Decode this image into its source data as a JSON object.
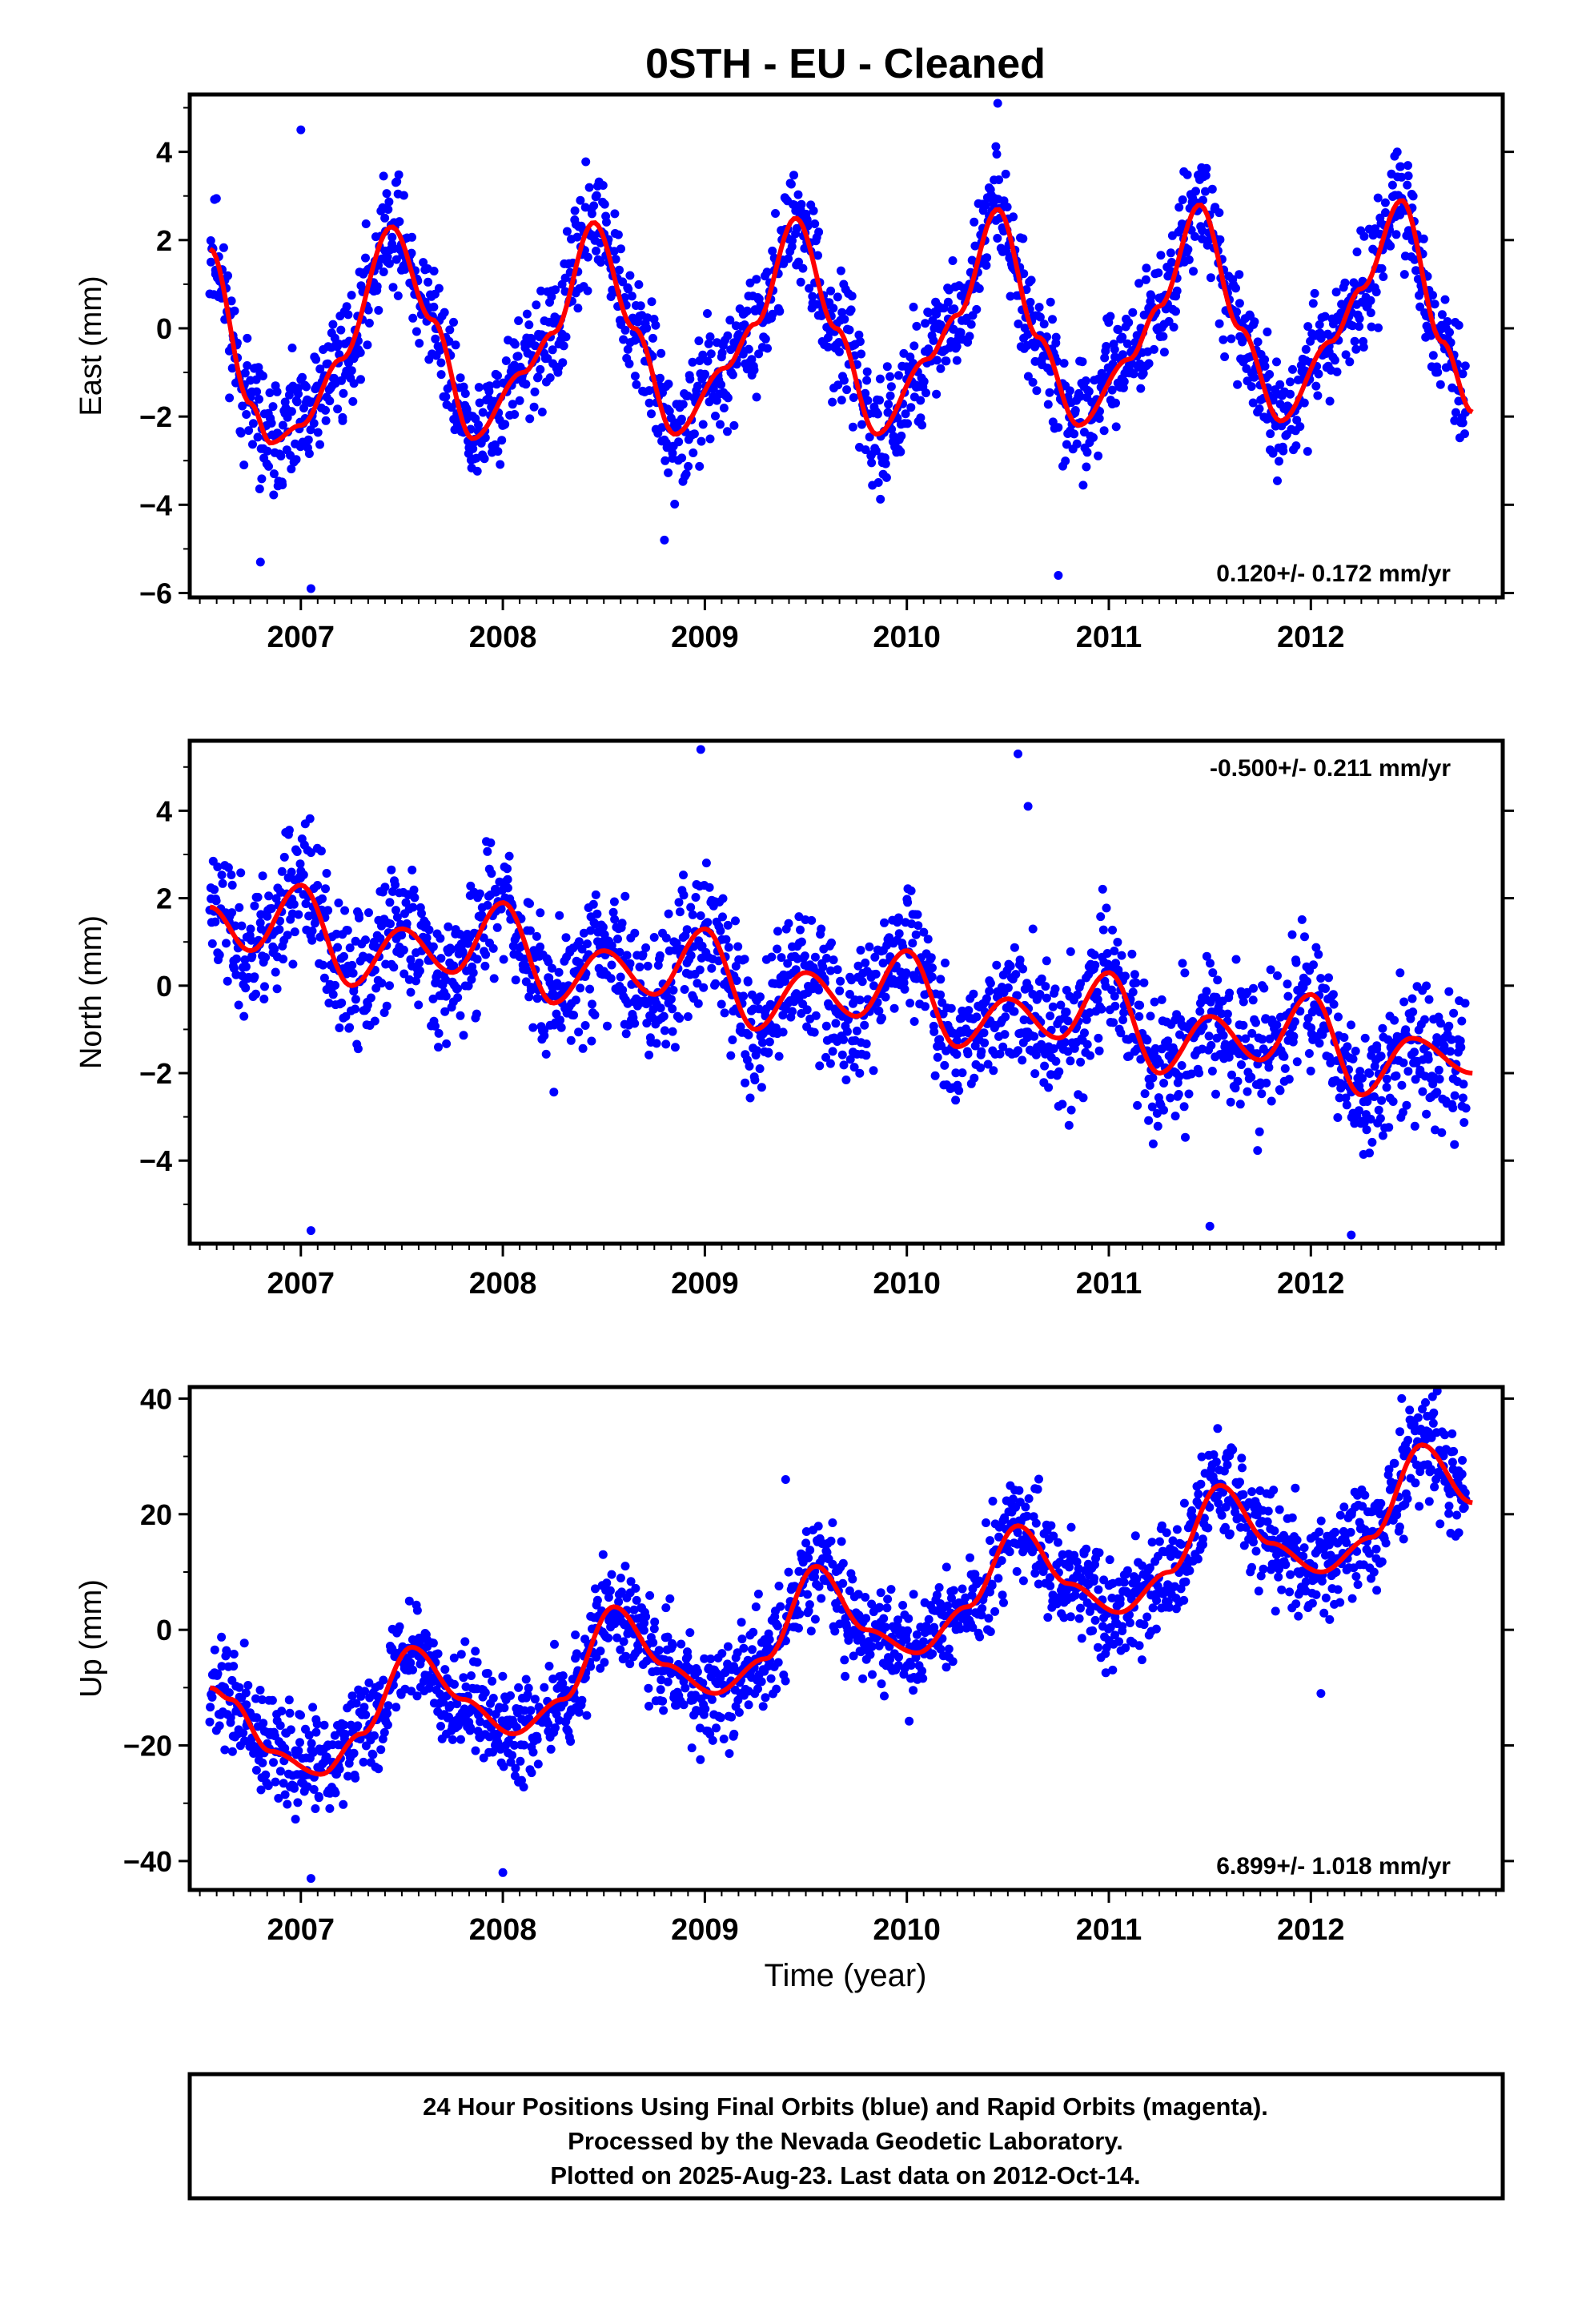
{
  "title": "0STH  - EU - Cleaned",
  "xlabel": "Time (year)",
  "footer": {
    "line1": "24 Hour Positions Using Final Orbits (blue) and Rapid Orbits (magenta).",
    "line2": "Processed by the Nevada Geodetic Laboratory.",
    "line3": "Plotted on 2025-Aug-23. Last data on 2012-Oct-14."
  },
  "colors": {
    "points": "#0000ff",
    "fit": "#ff0000",
    "frame": "#000000"
  },
  "chart_data": [
    {
      "type": "scatter",
      "ylabel": "East (mm)",
      "rate": "0.120+/- 0.172 mm/yr",
      "rate_position": "bottom-right",
      "xlim": [
        2006.45,
        2012.95
      ],
      "ylim": [
        -6.1,
        5.3
      ],
      "yticks": [
        -6,
        -4,
        -2,
        0,
        2,
        4
      ],
      "xticks": [
        2007,
        2008,
        2009,
        2010,
        2011,
        2012
      ],
      "xtick_labels": [
        "2007",
        "2008",
        "2009",
        "2010",
        "2011",
        "2012"
      ],
      "fit": {
        "x": [
          2006.55,
          2006.75,
          2006.85,
          2007.0,
          2007.2,
          2007.45,
          2007.65,
          2007.85,
          2008.1,
          2008.25,
          2008.45,
          2008.65,
          2008.85,
          2009.1,
          2009.25,
          2009.45,
          2009.65,
          2009.85,
          2010.1,
          2010.25,
          2010.45,
          2010.65,
          2010.85,
          2011.1,
          2011.25,
          2011.45,
          2011.65,
          2011.85,
          2012.1,
          2012.25,
          2012.45,
          2012.65,
          2012.8
        ],
        "y": [
          1.8,
          -1.7,
          -2.6,
          -2.2,
          -0.7,
          2.3,
          0.2,
          -2.5,
          -1.0,
          -0.1,
          2.4,
          0.0,
          -2.4,
          -0.9,
          0.1,
          2.5,
          0.0,
          -2.4,
          -0.7,
          0.3,
          2.7,
          -0.2,
          -2.2,
          -0.7,
          0.5,
          2.8,
          0.0,
          -2.1,
          -0.3,
          0.9,
          2.9,
          -0.3,
          -1.9
        ]
      },
      "points": {
        "count": 1900,
        "seed": 11,
        "noise": 0.8,
        "outliers": [
          [
            2006.8,
            -5.3
          ],
          [
            2007.05,
            -5.9
          ],
          [
            2010.75,
            -5.6
          ],
          [
            2010.45,
            5.1
          ],
          [
            2007.0,
            4.5
          ],
          [
            2008.8,
            -4.8
          ]
        ]
      }
    },
    {
      "type": "scatter",
      "ylabel": "North (mm)",
      "rate": "-0.500+/- 0.211 mm/yr",
      "rate_position": "top-right",
      "xlim": [
        2006.45,
        2012.95
      ],
      "ylim": [
        -5.9,
        5.6
      ],
      "yticks": [
        -4,
        -2,
        0,
        2,
        4
      ],
      "xticks": [
        2007,
        2008,
        2009,
        2010,
        2011,
        2012
      ],
      "xtick_labels": [
        "2007",
        "2008",
        "2009",
        "2010",
        "2011",
        "2012"
      ],
      "fit": {
        "x": [
          2006.55,
          2006.75,
          2007.0,
          2007.25,
          2007.5,
          2007.75,
          2008.0,
          2008.25,
          2008.5,
          2008.75,
          2009.0,
          2009.25,
          2009.5,
          2009.75,
          2010.0,
          2010.25,
          2010.5,
          2010.75,
          2011.0,
          2011.25,
          2011.5,
          2011.75,
          2012.0,
          2012.25,
          2012.5,
          2012.8
        ],
        "y": [
          1.8,
          0.8,
          2.3,
          0.0,
          1.3,
          0.3,
          1.9,
          -0.4,
          0.8,
          -0.2,
          1.3,
          -1.0,
          0.3,
          -0.7,
          0.8,
          -1.4,
          -0.3,
          -1.2,
          0.3,
          -2.0,
          -0.7,
          -1.7,
          -0.2,
          -2.5,
          -1.2,
          -2.0
        ]
      },
      "points": {
        "count": 1900,
        "seed": 23,
        "noise": 0.95,
        "outliers": [
          [
            2007.05,
            -5.6
          ],
          [
            2008.98,
            5.4
          ],
          [
            2010.55,
            5.3
          ],
          [
            2011.5,
            -5.5
          ],
          [
            2012.2,
            -5.7
          ],
          [
            2010.6,
            4.1
          ]
        ]
      }
    },
    {
      "type": "scatter",
      "ylabel": "Up (mm)",
      "rate": "6.899+/- 1.018 mm/yr",
      "rate_position": "bottom-right",
      "xlim": [
        2006.45,
        2012.95
      ],
      "ylim": [
        -45,
        42
      ],
      "yticks": [
        -40,
        -20,
        0,
        20,
        40
      ],
      "xticks": [
        2007,
        2008,
        2009,
        2010,
        2011,
        2012
      ],
      "xtick_labels": [
        "2007",
        "2008",
        "2009",
        "2010",
        "2011",
        "2012"
      ],
      "fit": {
        "x": [
          2006.55,
          2006.65,
          2006.85,
          2007.1,
          2007.3,
          2007.55,
          2007.8,
          2008.05,
          2008.3,
          2008.55,
          2008.8,
          2009.05,
          2009.3,
          2009.55,
          2009.8,
          2010.05,
          2010.3,
          2010.55,
          2010.8,
          2011.05,
          2011.3,
          2011.55,
          2011.8,
          2012.05,
          2012.3,
          2012.55,
          2012.8
        ],
        "y": [
          -10.0,
          -12.0,
          -21.0,
          -25.0,
          -18.0,
          -3.0,
          -12.0,
          -18.0,
          -12.0,
          4.0,
          -6.0,
          -11.0,
          -5.0,
          11.0,
          0.0,
          -4.0,
          4.0,
          18.0,
          8.0,
          3.0,
          10.0,
          25.0,
          15.0,
          10.0,
          16.0,
          32.0,
          22.0
        ]
      },
      "points": {
        "count": 1900,
        "seed": 37,
        "noise": 5.5,
        "outliers": [
          [
            2007.05,
            -43.0
          ],
          [
            2008.0,
            -42.0
          ],
          [
            2012.45,
            40.0
          ],
          [
            2012.05,
            -11.0
          ],
          [
            2009.4,
            26.0
          ]
        ]
      }
    }
  ]
}
